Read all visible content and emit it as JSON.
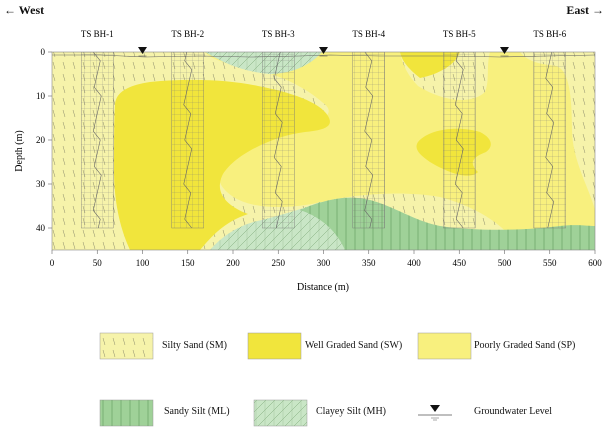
{
  "directions": {
    "west": "West",
    "east": "East",
    "west_arrow": "←",
    "east_arrow": "→"
  },
  "chart_data": {
    "type": "cross-section",
    "xlabel": "Distance (m)",
    "ylabel": "Depth (m)",
    "xlim": [
      0,
      600
    ],
    "ylim": [
      0,
      45
    ],
    "x_ticks": [
      "0",
      "50",
      "100",
      "150",
      "200",
      "250",
      "300",
      "350",
      "400",
      "450",
      "500",
      "550",
      "600"
    ],
    "y_ticks": [
      "0",
      "10",
      "20",
      "30",
      "40"
    ],
    "boreholes": [
      {
        "name": "TS BH-1",
        "x": 50
      },
      {
        "name": "TS BH-2",
        "x": 150
      },
      {
        "name": "TS BH-3",
        "x": 250
      },
      {
        "name": "TS BH-4",
        "x": 350
      },
      {
        "name": "TS BH-5",
        "x": 450
      },
      {
        "name": "TS BH-6",
        "x": 550
      }
    ],
    "groundwater_x": [
      100,
      300,
      500
    ],
    "colors": {
      "SM": "#f6f3aa",
      "SW": "#f1e53c",
      "SP": "#f8f07e",
      "ML": "#9fd198",
      "MH": "#c9e6c6"
    }
  },
  "legend": {
    "sm": "Silty Sand (SM)",
    "sw": "Well Graded Sand (SW)",
    "sp": "Poorly Graded Sand (SP)",
    "ml": "Sandy Silt (ML)",
    "mh": "Clayey Silt (MH)",
    "gw": "Groundwater  Level"
  }
}
